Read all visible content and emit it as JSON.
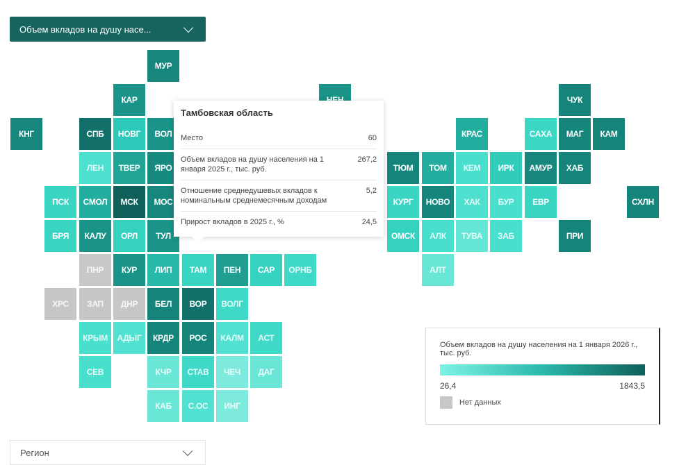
{
  "indicator_dropdown": {
    "value": "Объем вкладов на душу насе..."
  },
  "region_dropdown": {
    "placeholder": "Регион"
  },
  "tiles": [
    {
      "label": "МУР",
      "r": 0,
      "c": 4,
      "color": "#17877e"
    },
    {
      "label": "КАР",
      "r": 1,
      "c": 3,
      "color": "#1a9488"
    },
    {
      "label": "НЕН",
      "r": 1,
      "c": 9,
      "color": "#1a9488"
    },
    {
      "label": "ЧУК",
      "r": 1,
      "c": 16,
      "color": "#15857c"
    },
    {
      "label": "КНГ",
      "r": 2,
      "c": 0,
      "color": "#17877e"
    },
    {
      "label": "СПБ",
      "r": 2,
      "c": 2,
      "color": "#126f69"
    },
    {
      "label": "НОВГ",
      "r": 2,
      "c": 3,
      "color": "#2cc9b8"
    },
    {
      "label": "ВОЛ",
      "r": 2,
      "c": 4,
      "color": "#1a9488"
    },
    {
      "label": "КРАС",
      "r": 2,
      "c": 13,
      "color": "#22ad9f"
    },
    {
      "label": "САХА",
      "r": 2,
      "c": 15,
      "color": "#3cd6c5"
    },
    {
      "label": "МАГ",
      "r": 2,
      "c": 16,
      "color": "#15857c"
    },
    {
      "label": "КАМ",
      "r": 2,
      "c": 17,
      "color": "#15857c"
    },
    {
      "label": "ЛЕН",
      "r": 3,
      "c": 2,
      "color": "#4ee0cf"
    },
    {
      "label": "ТВЕР",
      "r": 3,
      "c": 3,
      "color": "#1fa496"
    },
    {
      "label": "ЯРО",
      "r": 3,
      "c": 4,
      "color": "#178a80"
    },
    {
      "label": "ТЮМ",
      "r": 3,
      "c": 11,
      "color": "#15857c"
    },
    {
      "label": "ТОМ",
      "r": 3,
      "c": 12,
      "color": "#22ad9f"
    },
    {
      "label": "КЕМ",
      "r": 3,
      "c": 13,
      "color": "#48dfcd"
    },
    {
      "label": "ИРК",
      "r": 3,
      "c": 14,
      "color": "#30cdbb"
    },
    {
      "label": "АМУР",
      "r": 3,
      "c": 15,
      "color": "#17877e"
    },
    {
      "label": "ХАБ",
      "r": 3,
      "c": 16,
      "color": "#15857c"
    },
    {
      "label": "ПСК",
      "r": 4,
      "c": 1,
      "color": "#3ad4c3"
    },
    {
      "label": "СМОЛ",
      "r": 4,
      "c": 2,
      "color": "#22ad9f"
    },
    {
      "label": "МСК",
      "r": 4,
      "c": 3,
      "color": "#0f5f5b"
    },
    {
      "label": "МОС",
      "r": 4,
      "c": 4,
      "color": "#17877e"
    },
    {
      "label": "КУРГ",
      "r": 4,
      "c": 11,
      "color": "#3ad4c3"
    },
    {
      "label": "НОВО",
      "r": 4,
      "c": 12,
      "color": "#15857c"
    },
    {
      "label": "ХАК",
      "r": 4,
      "c": 13,
      "color": "#4ee0cf"
    },
    {
      "label": "БУР",
      "r": 4,
      "c": 14,
      "color": "#48dfcd"
    },
    {
      "label": "ЕВР",
      "r": 4,
      "c": 15,
      "color": "#3ad4c3"
    },
    {
      "label": "СХЛН",
      "r": 4,
      "c": 18,
      "color": "#15857c"
    },
    {
      "label": "БРЯ",
      "r": 5,
      "c": 1,
      "color": "#3ad4c3"
    },
    {
      "label": "КАЛУ",
      "r": 5,
      "c": 2,
      "color": "#1a9488"
    },
    {
      "label": "ОРЛ",
      "r": 5,
      "c": 3,
      "color": "#36d2c0"
    },
    {
      "label": "ТУЛ",
      "r": 5,
      "c": 4,
      "color": "#1a9488"
    },
    {
      "label": "ОМСК",
      "r": 5,
      "c": 11,
      "color": "#36d2c0"
    },
    {
      "label": "АЛК",
      "r": 5,
      "c": 12,
      "color": "#48dfcd"
    },
    {
      "label": "ТУВА",
      "r": 5,
      "c": 13,
      "color": "#64e6d6"
    },
    {
      "label": "ЗАБ",
      "r": 5,
      "c": 14,
      "color": "#48dfcd"
    },
    {
      "label": "ПРИ",
      "r": 5,
      "c": 16,
      "color": "#15857c"
    },
    {
      "label": "ПНР",
      "r": 6,
      "c": 2,
      "color": "#c8c8c8"
    },
    {
      "label": "КУР",
      "r": 6,
      "c": 3,
      "color": "#1a9488"
    },
    {
      "label": "ЛИП",
      "r": 6,
      "c": 4,
      "color": "#26b8a9"
    },
    {
      "label": "ТАМ",
      "r": 6,
      "c": 5,
      "color": "#3ad4c3"
    },
    {
      "label": "ПЕН",
      "r": 6,
      "c": 6,
      "color": "#1f9e91"
    },
    {
      "label": "САР",
      "r": 6,
      "c": 7,
      "color": "#36d2c0"
    },
    {
      "label": "ОРНБ",
      "r": 6,
      "c": 8,
      "color": "#40d9c8"
    },
    {
      "label": "АЛТ",
      "r": 6,
      "c": 12,
      "color": "#6ae6d7"
    },
    {
      "label": "ХРС",
      "r": 7,
      "c": 1,
      "color": "#c6c6c6"
    },
    {
      "label": "ЗАП",
      "r": 7,
      "c": 2,
      "color": "#c6c6c6"
    },
    {
      "label": "ДНР",
      "r": 7,
      "c": 3,
      "color": "#c6c6c6"
    },
    {
      "label": "БЕЛ",
      "r": 7,
      "c": 4,
      "color": "#15857c"
    },
    {
      "label": "ВОР",
      "r": 7,
      "c": 5,
      "color": "#12716b"
    },
    {
      "label": "ВОЛГ",
      "r": 7,
      "c": 6,
      "color": "#40d9c8"
    },
    {
      "label": "КРЫМ",
      "r": 8,
      "c": 2,
      "color": "#48dfcd"
    },
    {
      "label": "АДЫГ",
      "r": 8,
      "c": 3,
      "color": "#52e0d0"
    },
    {
      "label": "КРДР",
      "r": 8,
      "c": 4,
      "color": "#15857c"
    },
    {
      "label": "РОС",
      "r": 8,
      "c": 5,
      "color": "#15857c"
    },
    {
      "label": "КАЛМ",
      "r": 8,
      "c": 6,
      "color": "#52e0d0"
    },
    {
      "label": "АСТ",
      "r": 8,
      "c": 7,
      "color": "#40d9c8"
    },
    {
      "label": "СЕВ",
      "r": 9,
      "c": 2,
      "color": "#48dfcd"
    },
    {
      "label": "КЧР",
      "r": 9,
      "c": 4,
      "color": "#6ae6d7"
    },
    {
      "label": "СТАВ",
      "r": 9,
      "c": 5,
      "color": "#40d9c8"
    },
    {
      "label": "ЧЕЧ",
      "r": 9,
      "c": 6,
      "color": "#7ee9dd"
    },
    {
      "label": "ДАГ",
      "r": 9,
      "c": 7,
      "color": "#6ae6d7"
    },
    {
      "label": "КАБ",
      "r": 10,
      "c": 4,
      "color": "#6ae6d7"
    },
    {
      "label": "С.ОС",
      "r": 10,
      "c": 5,
      "color": "#52e0d0"
    },
    {
      "label": "ИНГ",
      "r": 10,
      "c": 6,
      "color": "#7ee9dd"
    }
  ],
  "tooltip": {
    "title": "Тамбовская область",
    "rows": [
      {
        "label": "Место",
        "value": "60"
      },
      {
        "label": "Объем вкладов на душу населения на 1 января 2025 г., тыс. руб.",
        "value": "267,2"
      },
      {
        "label": "Отношение среднедушевых вкладов к номинальным среднемесячным доходам",
        "value": "5,2"
      },
      {
        "label": "Прирост вкладов в 2025 г., %",
        "value": "24,5"
      }
    ]
  },
  "legend": {
    "title": "Объем вкладов на душу населения на 1 января 2026 г., тыс. руб.",
    "min": "26,4",
    "max": "1843,5",
    "no_data": "Нет данных",
    "gradient_colors": [
      "#7ef2e6",
      "#10605b"
    ],
    "no_data_color": "#c8c8c8"
  }
}
